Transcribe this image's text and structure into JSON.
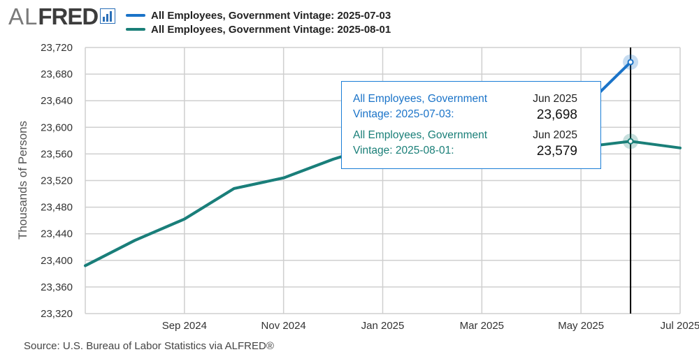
{
  "logo": {
    "prefix": "AL",
    "name": "FRED",
    "mark": "fred-chart-logo"
  },
  "legend": [
    {
      "label": "All Employees, Government Vintage: 2025-07-03",
      "color": "#1a73c8"
    },
    {
      "label": "All Employees, Government Vintage: 2025-08-01",
      "color": "#1a7f78"
    }
  ],
  "tooltip": {
    "rows": [
      {
        "name": "All Employees, Government Vintage: 2025-07-03:",
        "date": "Jun 2025",
        "value": "23,698",
        "color": "#1a73c8"
      },
      {
        "name": "All Employees, Government Vintage: 2025-08-01:",
        "date": "Jun 2025",
        "value": "23,579",
        "color": "#1a7f78"
      }
    ]
  },
  "source": "Source: U.S. Bureau of Labor Statistics via ALFRED®",
  "chart_data": {
    "type": "line",
    "title": "",
    "xlabel": "",
    "ylabel": "Thousands of Persons",
    "ylim": [
      23320,
      23720
    ],
    "yticks": [
      23320,
      23360,
      23400,
      23440,
      23480,
      23520,
      23560,
      23600,
      23640,
      23680,
      23720
    ],
    "ytick_labels": [
      "23,320",
      "23,360",
      "23,400",
      "23,440",
      "23,480",
      "23,520",
      "23,560",
      "23,600",
      "23,640",
      "23,680",
      "23,720"
    ],
    "xlim": [
      "2024-07",
      "2025-07"
    ],
    "xticks": [
      "2024-09",
      "2024-11",
      "2025-01",
      "2025-03",
      "2025-05",
      "2025-07"
    ],
    "xtick_labels": [
      "Sep 2024",
      "Nov 2024",
      "Jan 2025",
      "Mar 2025",
      "May 2025",
      "Jul 2025"
    ],
    "grid": true,
    "legend_position": "top",
    "highlight_x": "2025-06",
    "series": [
      {
        "name": "All Employees, Government Vintage: 2025-07-03",
        "color": "#1a73c8",
        "x": [
          "2024-07",
          "2024-08",
          "2024-09",
          "2024-10",
          "2024-11",
          "2024-12",
          "2025-01",
          "2025-02",
          "2025-03",
          "2025-04",
          "2025-05",
          "2025-06"
        ],
        "values": [
          23392,
          23430,
          23462,
          23508,
          23524,
          23552,
          23575,
          23589,
          23600,
          23612,
          23625,
          23698
        ]
      },
      {
        "name": "All Employees, Government Vintage: 2025-08-01",
        "color": "#1a7f78",
        "x": [
          "2024-07",
          "2024-08",
          "2024-09",
          "2024-10",
          "2024-11",
          "2024-12",
          "2025-01",
          "2025-02",
          "2025-03",
          "2025-04",
          "2025-05",
          "2025-06",
          "2025-07"
        ],
        "values": [
          23392,
          23430,
          23462,
          23508,
          23524,
          23552,
          23575,
          23565,
          23562,
          23566,
          23570,
          23579,
          23569
        ]
      }
    ]
  }
}
